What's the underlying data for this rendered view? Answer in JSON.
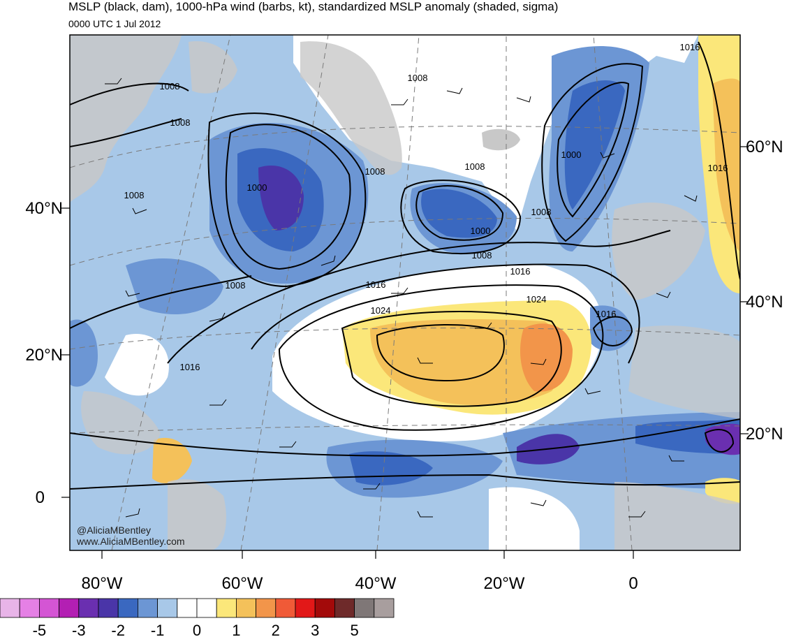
{
  "header": {
    "title": "MSLP (black, dam), 1000-hPa wind (barbs, kt), standardized MSLP anomaly (shaded, sigma)",
    "subtitle": "0000 UTC 1 Jul 2012"
  },
  "watermark": {
    "handle": "@AliciaMBentley",
    "site": "www.AliciaMBentley.com"
  },
  "axes": {
    "left_lat_labels": [
      "40°N",
      "20°N",
      "0"
    ],
    "right_lat_labels": [
      "60°N",
      "40°N",
      "20°N"
    ],
    "bottom_lon_labels": [
      "80°W",
      "60°W",
      "40°W",
      "20°W",
      "0"
    ]
  },
  "contour_labels": [
    "1008",
    "1008",
    "1008",
    "1008",
    "1008",
    "1008",
    "1008",
    "1008",
    "1008",
    "1016",
    "1016",
    "1016",
    "1016",
    "1016",
    "1016",
    "1000",
    "1000",
    "1000",
    "1024",
    "1024"
  ],
  "colorbar": {
    "colors": [
      "#e8b4e8",
      "#e580e5",
      "#d455d4",
      "#b31fb3",
      "#6a2fb0",
      "#4a35a8",
      "#3a68c0",
      "#6c96d4",
      "#a8c8e8",
      "#ffffff",
      "#ffffff",
      "#fbe77a",
      "#f4c15a",
      "#f2954a",
      "#f05a37",
      "#e21818",
      "#a30a0a",
      "#6e2a2a",
      "#7f7777",
      "#a89e9e"
    ],
    "tick_labels": [
      "-5",
      "-3",
      "-2",
      "-1",
      "0",
      "1",
      "2",
      "3",
      "5"
    ]
  },
  "colors": {
    "land": "#c8c8c8",
    "anomaly_neg_strong": "#3a68c0",
    "anomaly_neg_mid": "#6c96d4",
    "anomaly_neg_weak": "#a8c8e8",
    "anomaly_pos_weak": "#fbe77a",
    "anomaly_pos_mid": "#f4c15a",
    "anomaly_pos_strong": "#f2954a"
  }
}
